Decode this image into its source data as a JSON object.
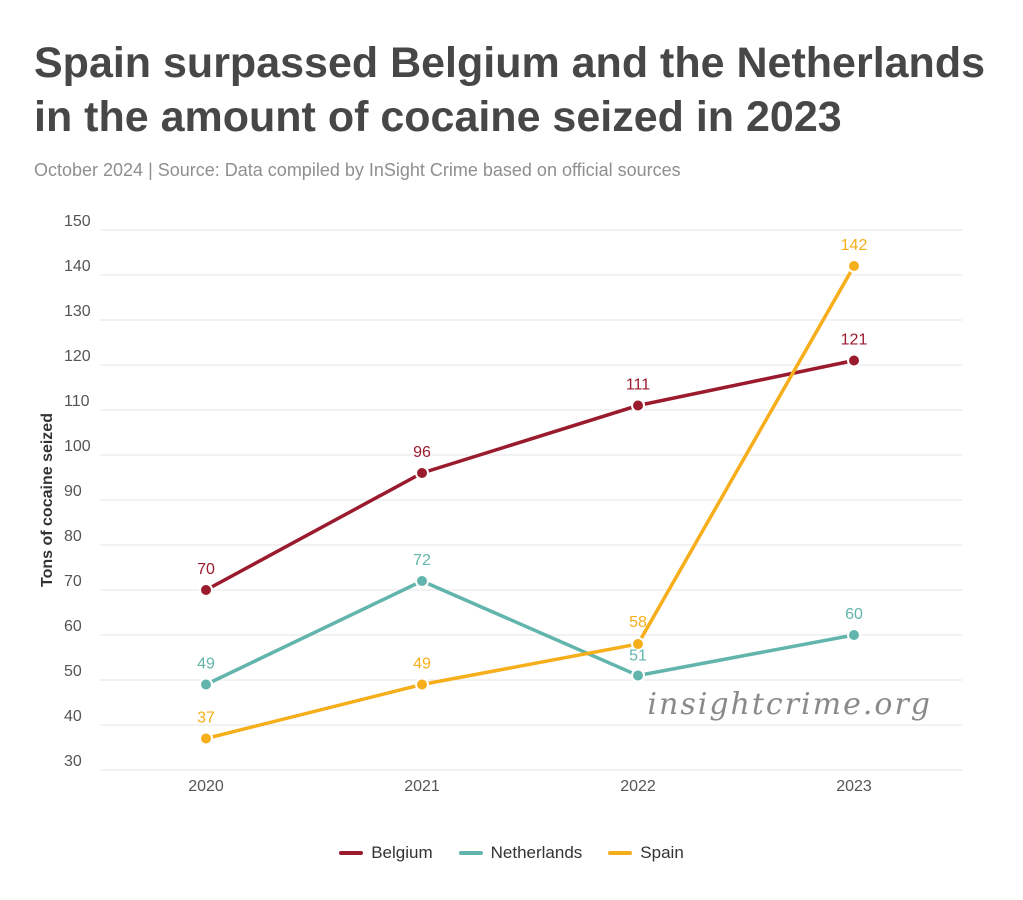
{
  "header": {
    "title": "Spain surpassed Belgium and the Netherlands in the amount of cocaine seized in 2023",
    "subtitle": "October 2024 | Source: Data compiled by InSight Crime based on official sources"
  },
  "watermark": "insightcrime.org",
  "chart_data": {
    "type": "line",
    "title": "Spain surpassed Belgium and the Netherlands in the amount of cocaine seized in 2023",
    "xlabel": "",
    "ylabel": "Tons of cocaine seized",
    "categories": [
      "2020",
      "2021",
      "2022",
      "2023"
    ],
    "ylim": [
      30,
      150
    ],
    "yticks": [
      30,
      40,
      50,
      60,
      70,
      80,
      90,
      100,
      110,
      120,
      130,
      140,
      150
    ],
    "grid": true,
    "legend": "bottom-center",
    "series": [
      {
        "name": "Belgium",
        "values": [
          70,
          96,
          111,
          121
        ],
        "color": "#9b1b2e"
      },
      {
        "name": "Netherlands",
        "values": [
          49,
          72,
          51,
          60
        ],
        "color": "#62b5ac"
      },
      {
        "name": "Spain",
        "values": [
          37,
          49,
          58,
          142
        ],
        "color": "#f6ae1b"
      }
    ]
  }
}
